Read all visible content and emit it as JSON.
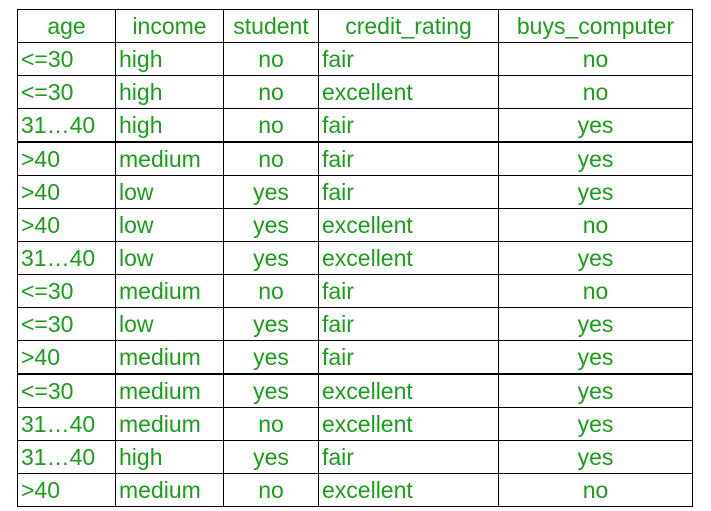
{
  "table": {
    "columns": [
      "age",
      "income",
      "student",
      "credit_rating",
      "buys_computer"
    ],
    "rows": [
      [
        "<=30",
        "high",
        "no",
        "fair",
        "no"
      ],
      [
        "<=30",
        "high",
        "no",
        "excellent",
        "no"
      ],
      [
        "31…40",
        "high",
        "no",
        "fair",
        "yes"
      ],
      [
        ">40",
        "medium",
        "no",
        "fair",
        "yes"
      ],
      [
        ">40",
        "low",
        "yes",
        "fair",
        "yes"
      ],
      [
        ">40",
        "low",
        "yes",
        "excellent",
        "no"
      ],
      [
        "31…40",
        "low",
        "yes",
        "excellent",
        "yes"
      ],
      [
        "<=30",
        "medium",
        "no",
        "fair",
        "no"
      ],
      [
        "<=30",
        "low",
        "yes",
        "fair",
        "yes"
      ],
      [
        ">40",
        "medium",
        "yes",
        "fair",
        "yes"
      ],
      [
        "<=30",
        "medium",
        "yes",
        "excellent",
        "yes"
      ],
      [
        "31…40",
        "medium",
        "no",
        "excellent",
        "yes"
      ],
      [
        "31…40",
        "high",
        "yes",
        "fair",
        "yes"
      ],
      [
        ">40",
        "medium",
        "no",
        "excellent",
        "no"
      ]
    ]
  },
  "colors": {
    "text": "#1a9e1a",
    "border": "#000000",
    "background": "#ffffff"
  }
}
